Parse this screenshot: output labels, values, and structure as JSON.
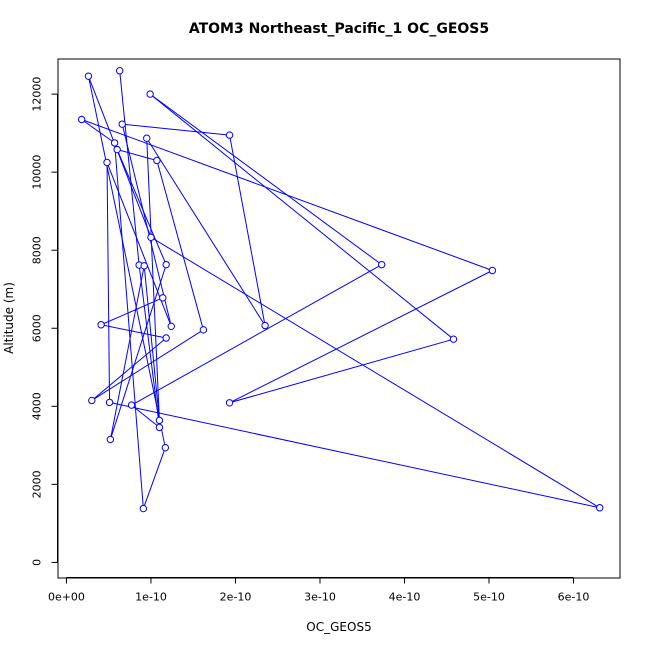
{
  "chart_data": {
    "type": "line",
    "title": "ATOM3 Northeast_Pacific_1 OC_GEOS5",
    "xlabel": "OC_GEOS5",
    "ylabel": "Altitude (m)",
    "xlim": [
      -1e-11,
      6.55e-10
    ],
    "ylim": [
      -400,
      12900
    ],
    "x_ticks": [
      0,
      1e-10,
      2e-10,
      3e-10,
      4e-10,
      5e-10,
      6e-10
    ],
    "x_tick_labels": [
      "0e+00",
      "1e-10",
      "2e-10",
      "3e-10",
      "4e-10",
      "5e-10",
      "6e-10"
    ],
    "y_ticks": [
      0,
      2000,
      4000,
      6000,
      8000,
      10000,
      12000
    ],
    "y_tick_labels": [
      "0",
      "2000",
      "4000",
      "6000",
      "8000",
      "10000",
      "12000"
    ],
    "grid": false,
    "series_color": "#0000ff",
    "series": [
      {
        "name": "",
        "points": [
          [
            6.3e-11,
            12600
          ],
          [
            8.6e-11,
            7620
          ],
          [
            1.1e-10,
            3460
          ],
          [
            7.7e-11,
            4030
          ],
          [
            3.73e-10,
            7630
          ],
          [
            9.9e-11,
            12000
          ],
          [
            4.58e-10,
            5720
          ],
          [
            1.93e-10,
            4090
          ],
          [
            5.04e-10,
            7480
          ],
          [
            1.8e-11,
            11350
          ],
          [
            5.7e-11,
            10750
          ],
          [
            9.1e-11,
            1380
          ],
          [
            1.17e-10,
            2940
          ],
          [
            2.6e-11,
            12460
          ],
          [
            1e-10,
            8330
          ],
          [
            6.31e-10,
            1400
          ],
          [
            5.1e-11,
            4100
          ],
          [
            4.8e-11,
            10250
          ],
          [
            1.24e-10,
            6050
          ],
          [
            6.6e-11,
            11230
          ],
          [
            1.93e-10,
            10950
          ],
          [
            2.35e-10,
            6070
          ],
          [
            9.5e-11,
            10870
          ],
          [
            1.1e-10,
            3640
          ],
          [
            9.2e-11,
            7600
          ],
          [
            5.2e-11,
            3150
          ],
          [
            1.18e-10,
            7630
          ],
          [
            6e-11,
            10580
          ],
          [
            1.07e-10,
            10300
          ],
          [
            1.62e-10,
            5960
          ],
          [
            3e-11,
            4150
          ],
          [
            1.18e-10,
            5750
          ],
          [
            4.1e-11,
            6090
          ],
          [
            1.14e-10,
            6780
          ]
        ]
      }
    ]
  }
}
